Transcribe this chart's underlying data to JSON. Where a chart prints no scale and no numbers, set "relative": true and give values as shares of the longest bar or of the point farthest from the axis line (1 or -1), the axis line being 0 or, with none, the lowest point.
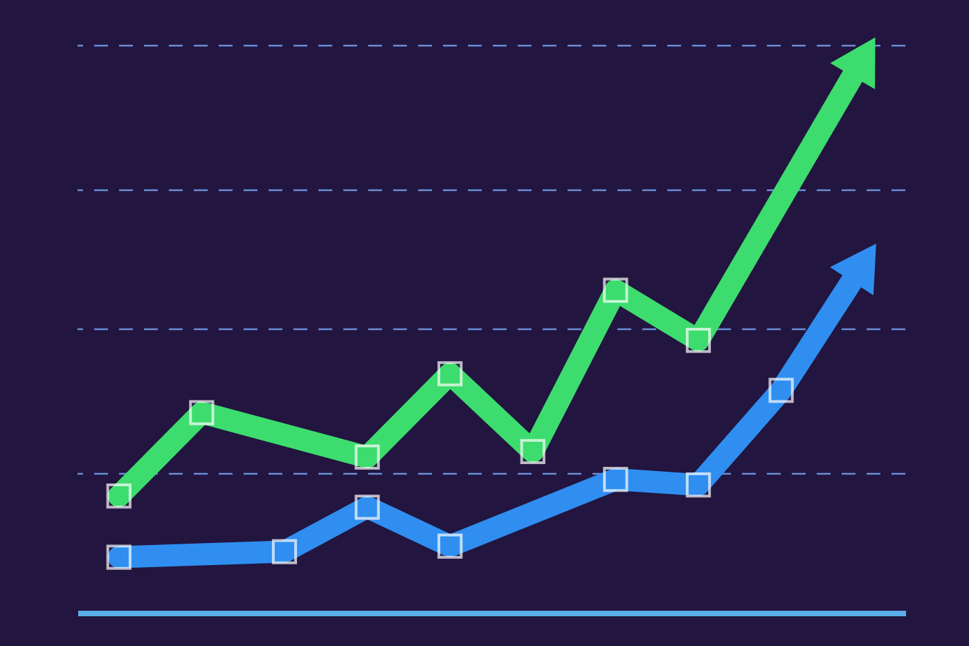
{
  "chart_data": {
    "type": "line",
    "relative": true,
    "categories": [
      null,
      null,
      null,
      null,
      null,
      null,
      null,
      null,
      null,
      null
    ],
    "series": [
      {
        "color": "#3ddc6e",
        "values": [
          0.21,
          0.36,
          null,
          0.28,
          0.43,
          0.29,
          0.58,
          0.49,
          null,
          1
        ]
      },
      {
        "color": "#2f8ef0",
        "values": [
          0.1,
          null,
          0.11,
          0.19,
          0.12,
          null,
          0.24,
          0.23,
          0.4,
          0.63
        ]
      }
    ],
    "ref_lines": [
      {
        "axis": "y",
        "value": 0.25,
        "color": "#6a8fd8",
        "line_style": "dashed"
      },
      {
        "axis": "y",
        "value": 0.51,
        "color": "#6a8fd8",
        "line_style": "dashed"
      },
      {
        "axis": "y",
        "value": 0.76,
        "color": "#6a8fd8",
        "line_style": "dashed"
      },
      {
        "axis": "y",
        "value": 1.02,
        "color": "#6a8fd8",
        "line_style": "dashed"
      }
    ],
    "marker": "square",
    "tick_labels": false,
    "line_style": "solid"
  }
}
